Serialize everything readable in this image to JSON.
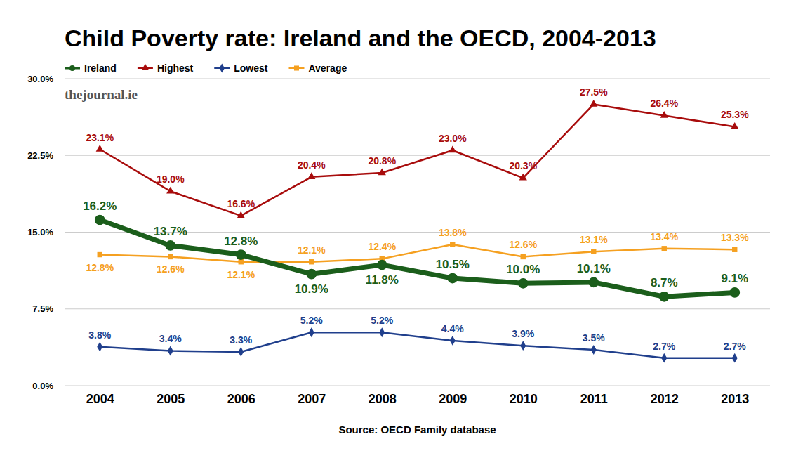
{
  "chart_data": {
    "type": "line",
    "title": "Child Poverty rate: Ireland and the OECD, 2004-2013",
    "annotations": [
      "thejournal.ie"
    ],
    "source": "Source: OECD Family database",
    "categories": [
      "2004",
      "2005",
      "2006",
      "2007",
      "2008",
      "2009",
      "2010",
      "2011",
      "2012",
      "2013"
    ],
    "series": [
      {
        "name": "Ireland",
        "color": "#1b5e1b",
        "marker": "circle",
        "values": [
          16.2,
          13.7,
          12.8,
          10.9,
          11.8,
          10.5,
          10.0,
          10.1,
          8.7,
          9.1
        ],
        "value_labels": [
          "16.2%",
          "13.7%",
          "12.8%",
          "10.9%",
          "11.8%",
          "10.5%",
          "10.0%",
          "10.1%",
          "8.7%",
          "9.1%"
        ]
      },
      {
        "name": "Highest",
        "color": "#a80c0c",
        "marker": "triangle",
        "values": [
          23.1,
          19.0,
          16.6,
          20.4,
          20.8,
          23.0,
          20.3,
          27.5,
          26.4,
          25.3
        ],
        "value_labels": [
          "23.1%",
          "19.0%",
          "16.6%",
          "20.4%",
          "20.8%",
          "23.0%",
          "20.3%",
          "27.5%",
          "26.4%",
          "25.3%"
        ]
      },
      {
        "name": "Lowest",
        "color": "#203f8c",
        "marker": "diamond",
        "values": [
          3.8,
          3.4,
          3.3,
          5.2,
          5.2,
          4.4,
          3.9,
          3.5,
          2.7,
          2.7
        ],
        "value_labels": [
          "3.8%",
          "3.4%",
          "3.3%",
          "5.2%",
          "5.2%",
          "4.4%",
          "3.9%",
          "3.5%",
          "2.7%",
          "2.7%"
        ]
      },
      {
        "name": "Average",
        "color": "#f5a020",
        "marker": "square",
        "values": [
          12.8,
          12.6,
          12.1,
          12.1,
          12.4,
          13.8,
          12.6,
          13.1,
          13.4,
          13.3
        ],
        "value_labels": [
          "12.8%",
          "12.6%",
          "12.1%",
          "12.1%",
          "12.4%",
          "13.8%",
          "12.6%",
          "13.1%",
          "13.4%",
          "13.3%"
        ]
      }
    ],
    "ylim": [
      0,
      30
    ],
    "yticks": [
      {
        "value": 0,
        "label": "0.0%"
      },
      {
        "value": 7.5,
        "label": "7.5%"
      },
      {
        "value": 15,
        "label": "15.0%"
      },
      {
        "value": 22.5,
        "label": "22.5%"
      },
      {
        "value": 30,
        "label": "30.0%"
      }
    ],
    "grid": true,
    "legend": "top-left",
    "data_labels": true
  }
}
